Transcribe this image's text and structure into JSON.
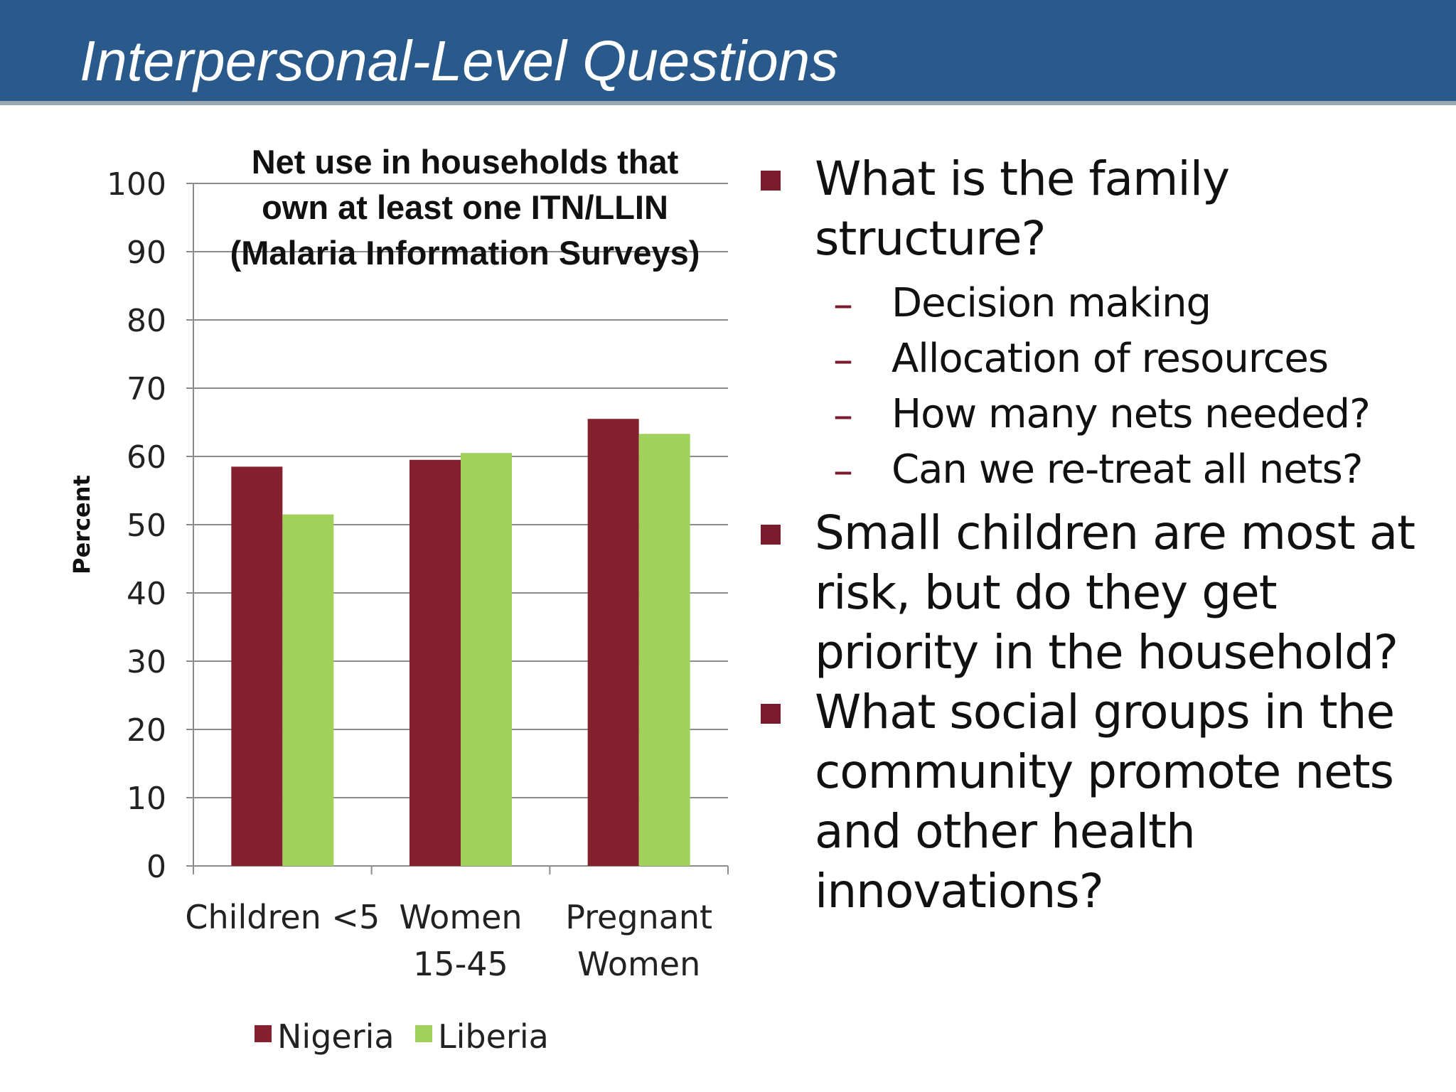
{
  "slide": {
    "title": "Interpersonal-Level Questions",
    "accent_color": "#2a5a8b"
  },
  "bullets": [
    {
      "text": "What is the family structure?",
      "sub": [
        "Decision making",
        "Allocation of resources",
        "How many nets needed?",
        "Can we re-treat all nets?"
      ]
    },
    {
      "text": "Small children are most at risk, but do they get priority in the household?",
      "sub": []
    },
    {
      "text": "What social groups in the community promote nets and other health innovations?",
      "sub": []
    }
  ],
  "bullet_marker_color": "#7b1c2c",
  "chart_data": {
    "type": "bar",
    "title": [
      "Net use in households that",
      "own at least one ITN/LLIN",
      "(Malaria Information Surveys)"
    ],
    "xlabel": "",
    "ylabel": "Percent",
    "categories": [
      [
        "Children <5"
      ],
      [
        "Women",
        "15-45"
      ],
      [
        "Pregnant",
        "Women"
      ]
    ],
    "series": [
      {
        "name": "Nigeria",
        "color": "#85202f",
        "values": [
          58.5,
          59.5,
          65.5
        ]
      },
      {
        "name": "Liberia",
        "color": "#9fd15c",
        "values": [
          51.5,
          60.5,
          63.3
        ]
      }
    ],
    "ylim": [
      0,
      100
    ],
    "yticks": [
      0,
      10,
      20,
      30,
      40,
      50,
      60,
      70,
      80,
      90,
      100
    ],
    "grid": true,
    "legend": "bottom"
  }
}
